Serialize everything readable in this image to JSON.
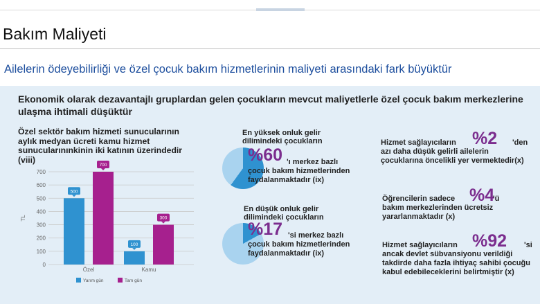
{
  "header": {
    "title": "Bakım Maliyeti",
    "subtitle": "Ailelerin ödeyebilirliği ve özel çocuk bakım hizmetlerinin maliyeti arasındaki fark büyüktür"
  },
  "intro": "Ekonomik olarak dezavantajlı gruplardan gelen çocukların mevcut maliyetlerle özel çocuk bakım merkezlerine ulaşma ihtimali düşüktür",
  "chart_data": {
    "type": "bar",
    "title": "Özel sektör bakım hizmeti sunucularının aylık medyan ücreti kamu hizmet sunucularınınkinin iki katının üzerindedir (viii)",
    "categories": [
      "Özel",
      "Kamu"
    ],
    "series": [
      {
        "name": "Yarım gün",
        "values": [
          500,
          100
        ],
        "color": "#2f92d0"
      },
      {
        "name": "Tam gün",
        "values": [
          700,
          300
        ],
        "color": "#a6208e"
      }
    ],
    "ylabel": "TL",
    "ylim": [
      0,
      700
    ],
    "yticks": [
      0,
      100,
      200,
      300,
      400,
      500,
      600,
      700
    ],
    "tick_labels": [
      "0",
      "100",
      "200",
      "300",
      "400",
      "500",
      "600",
      "700"
    ],
    "value_labels": [
      "500",
      "700",
      "100",
      "300"
    ],
    "grid": true,
    "legend": "bottom"
  },
  "stats_mid": [
    {
      "head": "En yüksek onluk gelir dilimindeki çocukların",
      "big": "%60",
      "body": "'ı merkez bazlı çocuk bakım hizmetlerinden faydalanmaktadır (ix)",
      "percent": 60
    },
    {
      "head": "En düşük onluk gelir dilimindeki çocukların",
      "big": "%17",
      "body": "'si merkez bazlı çocuk bakım hizmetlerinden faydalanmaktadır (ix)",
      "percent": 17
    }
  ],
  "stats_right": [
    {
      "pre": "Hizmet sağlayıcıların",
      "big": "%2",
      "post": "'den azı daha düşük gelirli ailelerin çocuklarına öncelikli yer vermektedir(x)"
    },
    {
      "pre": "Öğrencilerin sadece",
      "big": "%4",
      "post": "'ü bakım merkezlerinden ücretsiz yararlanmaktadır (x)"
    },
    {
      "pre": "Hizmet sağlayıcıların",
      "big": "%92",
      "post": "'si ancak devlet sübvansiyonu verildiği takdirde daha fazla ihtiyaç sahibi çocuğu kabul edebileceklerini belirtmiştir (x)"
    }
  ],
  "colors": {
    "pie_base": "#a9d3ef",
    "pie_fill": "#2f92d0",
    "accent": "#7b2d8e",
    "subtitle": "#1e4f9e"
  }
}
